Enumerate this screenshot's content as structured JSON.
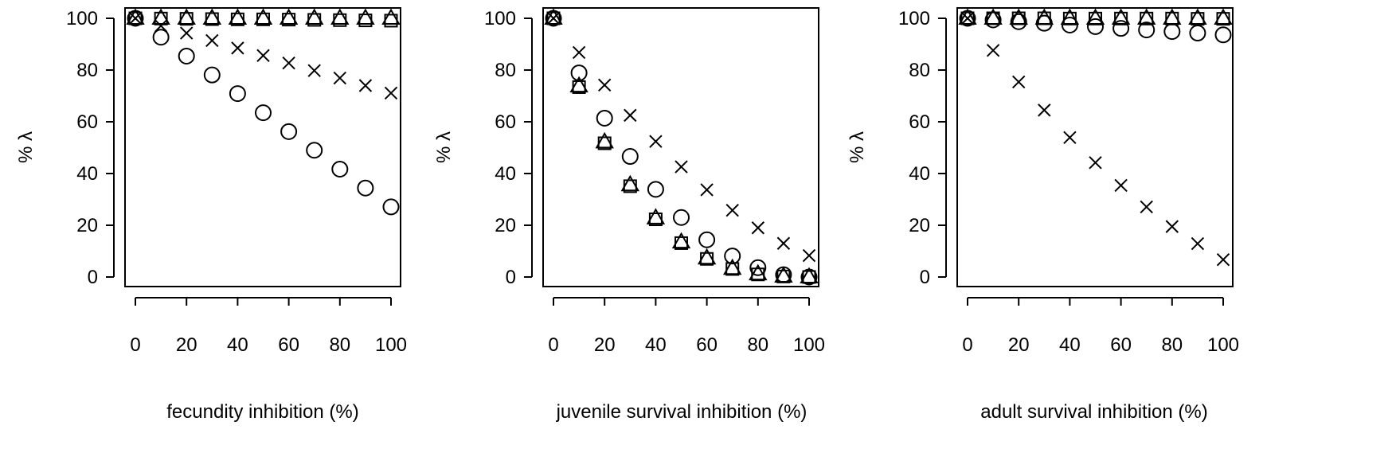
{
  "chart_data": [
    {
      "type": "scatter",
      "xlabel": "fecundity inhibition (%)",
      "ylabel": "% λ",
      "xticks": [
        "0",
        "20",
        "40",
        "60",
        "80",
        "100"
      ],
      "yticks": [
        "0",
        "20",
        "40",
        "60",
        "80",
        "100"
      ],
      "xlim": [
        0,
        100
      ],
      "ylim": [
        0,
        100
      ],
      "x": [
        0,
        10,
        20,
        30,
        40,
        50,
        60,
        70,
        80,
        90,
        100
      ],
      "series": [
        {
          "marker": "circle",
          "values": [
            100,
            92.7,
            85.4,
            78.1,
            70.9,
            63.5,
            56.2,
            49.0,
            41.7,
            34.4,
            27.1
          ]
        },
        {
          "marker": "cross",
          "values": [
            100,
            97.1,
            94.3,
            91.4,
            88.5,
            85.6,
            82.7,
            79.8,
            76.9,
            74.0,
            71.1
          ]
        },
        {
          "marker": "square",
          "values": [
            100,
            99.9,
            99.8,
            99.7,
            99.6,
            99.6,
            99.5,
            99.4,
            99.3,
            99.2,
            99.1
          ]
        },
        {
          "marker": "triangle",
          "values": [
            100,
            100,
            100,
            100,
            100,
            100,
            100,
            100,
            100,
            100,
            100
          ]
        }
      ]
    },
    {
      "type": "scatter",
      "xlabel": "juvenile survival inhibition (%)",
      "ylabel": "% λ",
      "xticks": [
        "0",
        "20",
        "40",
        "60",
        "80",
        "100"
      ],
      "yticks": [
        "0",
        "20",
        "40",
        "60",
        "80",
        "100"
      ],
      "xlim": [
        0,
        100
      ],
      "ylim": [
        0,
        100
      ],
      "x": [
        0,
        10,
        20,
        30,
        40,
        50,
        60,
        70,
        80,
        90,
        100
      ],
      "series": [
        {
          "marker": "circle",
          "values": [
            100,
            78.9,
            61.4,
            46.6,
            33.9,
            23.0,
            14.4,
            8.1,
            3.6,
            0.9,
            0
          ]
        },
        {
          "marker": "cross",
          "values": [
            100,
            86.8,
            74.2,
            62.5,
            52.4,
            42.6,
            33.7,
            25.8,
            19.0,
            13.0,
            8.3
          ]
        },
        {
          "marker": "square",
          "values": [
            100,
            73.4,
            51.7,
            35.1,
            22.3,
            13.1,
            7.0,
            3.1,
            1.0,
            0.2,
            0
          ]
        },
        {
          "marker": "triangle",
          "values": [
            100,
            73.8,
            52.2,
            35.6,
            22.8,
            13.5,
            7.3,
            3.3,
            1.2,
            0.3,
            0
          ]
        }
      ]
    },
    {
      "type": "scatter",
      "xlabel": "adult survival inhibition (%)",
      "ylabel": "% λ",
      "xticks": [
        "0",
        "20",
        "40",
        "60",
        "80",
        "100"
      ],
      "yticks": [
        "0",
        "20",
        "40",
        "60",
        "80",
        "100"
      ],
      "xlim": [
        0,
        100
      ],
      "ylim": [
        0,
        100
      ],
      "x": [
        0,
        10,
        20,
        30,
        40,
        50,
        60,
        70,
        80,
        90,
        100
      ],
      "series": [
        {
          "marker": "circle",
          "values": [
            100,
            99.4,
            98.7,
            98.1,
            97.4,
            96.8,
            96.1,
            95.5,
            94.9,
            94.3,
            93.6
          ]
        },
        {
          "marker": "cross",
          "values": [
            100,
            87.6,
            75.4,
            64.5,
            53.9,
            44.2,
            35.4,
            27.1,
            19.5,
            12.9,
            6.7
          ]
        },
        {
          "marker": "square",
          "values": [
            100,
            100,
            100,
            100,
            99.9,
            99.9,
            99.9,
            99.9,
            99.9,
            99.8,
            99.8
          ]
        },
        {
          "marker": "triangle",
          "values": [
            100,
            100,
            100,
            100,
            100,
            100,
            100,
            100,
            100,
            100,
            100
          ]
        }
      ]
    }
  ]
}
